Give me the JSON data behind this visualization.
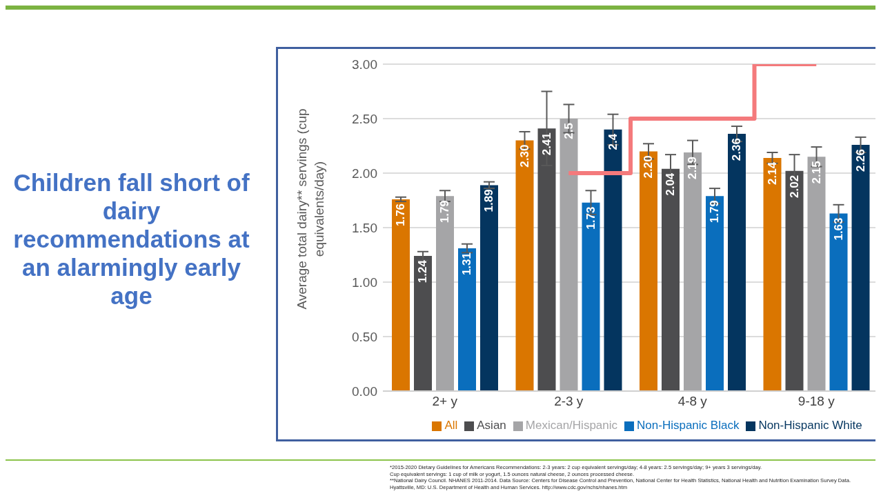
{
  "chart_data": {
    "type": "bar",
    "title": "Children fall short of dairy recommendations at an alarmingly early age",
    "ylabel": "Average total dairy** servings (cup equivalents/day)",
    "categories": [
      "2+ y",
      "2-3 y",
      "4-8 y",
      "9-18 y"
    ],
    "ylim": [
      0,
      3
    ],
    "yticks": [
      {
        "value": 0,
        "label": "0.00"
      },
      {
        "value": 0.5,
        "label": "0.50"
      },
      {
        "value": 1,
        "label": "1.00"
      },
      {
        "value": 1.5,
        "label": "1.50"
      },
      {
        "value": 2,
        "label": "2.00"
      },
      {
        "value": 2.5,
        "label": "2.50"
      },
      {
        "value": 3,
        "label": "3.00"
      }
    ],
    "grid": "y",
    "legend": "bottom",
    "series": [
      {
        "name": "All",
        "color": "#da7600",
        "values": [
          1.76,
          2.3,
          2.2,
          2.14
        ],
        "errors": [
          0.02,
          0.08,
          0.07,
          0.05
        ],
        "value_labels": [
          "1.76",
          "2.30",
          "2.20",
          "2.14"
        ]
      },
      {
        "name": "Asian",
        "color": "#4d4d4f",
        "values": [
          1.24,
          2.41,
          2.04,
          2.02
        ],
        "errors": [
          0.04,
          0.34,
          0.13,
          0.15
        ],
        "value_labels": [
          "1.24",
          "2.41",
          "2.04",
          "2.02"
        ]
      },
      {
        "name": "Mexican/Hispanic",
        "color": "#a5a5a7",
        "values": [
          1.79,
          2.5,
          2.19,
          2.15
        ],
        "errors": [
          0.05,
          0.13,
          0.11,
          0.09
        ],
        "value_labels": [
          "1.79",
          "2.5",
          "2.19",
          "2.15"
        ]
      },
      {
        "name": "Non-Hispanic Black",
        "color": "#0a6ebd",
        "values": [
          1.31,
          1.73,
          1.79,
          1.63
        ],
        "errors": [
          0.04,
          0.11,
          0.07,
          0.08
        ],
        "value_labels": [
          "1.31",
          "1.73",
          "1.79",
          "1.63"
        ]
      },
      {
        "name": "Non-Hispanic White",
        "color": "#04355f",
        "values": [
          1.89,
          2.4,
          2.36,
          2.26
        ],
        "errors": [
          0.03,
          0.14,
          0.07,
          0.07
        ],
        "value_labels": [
          "1.89",
          "2.4",
          "2.36",
          "2.26"
        ]
      },
      {
        "type": "step",
        "color": "#f47a7c",
        "values": [
          null,
          2,
          2.5,
          3
        ]
      }
    ],
    "annotations": [
      "*2015-2020 Dietary Guidelines for Americans Recommendations:  2-3 years: 2 cup equivalent servings/day; 4-8 years: 2.5 servings/day; 9+ years 3 servings/day.",
      "Cup equivalent servings: 1 cup of milk or yogurt, 1.5 ounces natural cheese, 2 ounces processed cheese.",
      "**National Dairy Council. NHANES 2011-2014. Data Source: Centers for Disease Control and Prevention, National Center for Health Statistics, National Health and Nutrition Examination Survey Data. Hyattsville, MD: U.S. Department of Health and Human Services. http://www.cdc.gov/nchs/nhanes.htm"
    ]
  }
}
